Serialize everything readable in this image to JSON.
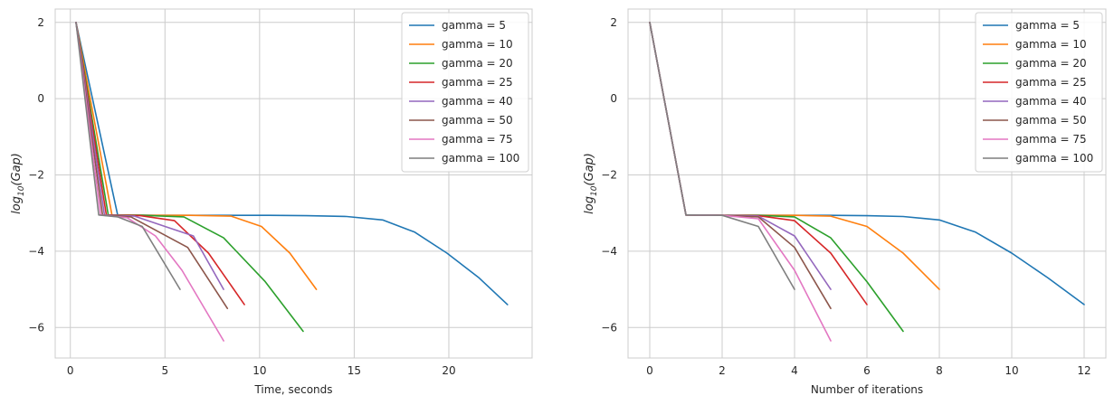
{
  "chart_data": [
    {
      "type": "line",
      "title": "",
      "xlabel": "Time, seconds",
      "ylabel_base": "log",
      "ylabel_sub": "10",
      "ylabel_arg": "(Gap)",
      "xlim": [
        -0.8,
        24.4
      ],
      "ylim": [
        -6.8,
        2.35
      ],
      "xticks": [
        0,
        5,
        10,
        15,
        20
      ],
      "yticks": [
        2,
        0,
        -2,
        -4,
        -6
      ],
      "grid": true,
      "legend_position": "top-right",
      "series": [
        {
          "name": "gamma = 5",
          "color": "#1f77b4",
          "x": [
            0.3,
            2.5,
            4.5,
            6.5,
            8.5,
            10.5,
            12.5,
            14.6,
            16.5,
            18.2,
            19.9,
            21.6,
            23.1
          ],
          "y": [
            2.0,
            -3.05,
            -3.06,
            -3.06,
            -3.06,
            -3.06,
            -3.07,
            -3.09,
            -3.18,
            -3.5,
            -4.05,
            -4.7,
            -5.4
          ]
        },
        {
          "name": "gamma = 10",
          "color": "#ff7f0e",
          "x": [
            0.3,
            2.2,
            4.2,
            6.3,
            8.5,
            10.1,
            11.6,
            13.0
          ],
          "y": [
            2.0,
            -3.05,
            -3.06,
            -3.06,
            -3.08,
            -3.35,
            -4.05,
            -5.0
          ]
        },
        {
          "name": "gamma = 20",
          "color": "#2ca02c",
          "x": [
            0.3,
            2.0,
            3.8,
            6.0,
            8.1,
            10.3,
            12.3
          ],
          "y": [
            2.0,
            -3.05,
            -3.06,
            -3.1,
            -3.65,
            -4.8,
            -6.1
          ]
        },
        {
          "name": "gamma = 25",
          "color": "#d62728",
          "x": [
            0.3,
            1.9,
            3.7,
            5.5,
            7.3,
            9.2
          ],
          "y": [
            2.0,
            -3.05,
            -3.07,
            -3.2,
            -4.05,
            -5.4
          ]
        },
        {
          "name": "gamma = 40",
          "color": "#9467bd",
          "x": [
            0.3,
            1.8,
            3.4,
            5.0,
            6.5,
            8.1
          ],
          "y": [
            2.0,
            -3.05,
            -3.08,
            -3.35,
            -3.6,
            -5.0
          ]
        },
        {
          "name": "gamma = 50",
          "color": "#8c564b",
          "x": [
            0.3,
            1.7,
            3.2,
            4.7,
            6.2,
            8.3
          ],
          "y": [
            2.0,
            -3.05,
            -3.1,
            -3.5,
            -3.9,
            -5.5
          ]
        },
        {
          "name": "gamma = 75",
          "color": "#e377c2",
          "x": [
            0.3,
            1.6,
            3.0,
            4.5,
            5.9,
            8.1
          ],
          "y": [
            2.0,
            -3.05,
            -3.12,
            -3.6,
            -4.5,
            -6.35
          ]
        },
        {
          "name": "gamma = 100",
          "color": "#7f7f7f",
          "x": [
            0.3,
            1.5,
            2.5,
            3.8,
            5.8
          ],
          "y": [
            2.0,
            -3.05,
            -3.1,
            -3.35,
            -5.0
          ]
        }
      ]
    },
    {
      "type": "line",
      "title": "",
      "xlabel": "Number of iterations",
      "ylabel_base": "log",
      "ylabel_sub": "10",
      "ylabel_arg": "(Gap)",
      "xlim": [
        -0.6,
        12.6
      ],
      "ylim": [
        -6.8,
        2.35
      ],
      "xticks": [
        0,
        2,
        4,
        6,
        8,
        10,
        12
      ],
      "yticks": [
        2,
        0,
        -2,
        -4,
        -6
      ],
      "grid": true,
      "legend_position": "top-right",
      "series": [
        {
          "name": "gamma = 5",
          "color": "#1f77b4",
          "x": [
            0,
            1,
            2,
            3,
            4,
            5,
            6,
            7,
            8,
            9,
            10,
            11,
            12
          ],
          "y": [
            2.0,
            -3.05,
            -3.06,
            -3.06,
            -3.06,
            -3.06,
            -3.07,
            -3.09,
            -3.18,
            -3.5,
            -4.05,
            -4.7,
            -5.4
          ]
        },
        {
          "name": "gamma = 10",
          "color": "#ff7f0e",
          "x": [
            0,
            1,
            2,
            3,
            4,
            5,
            6,
            7,
            8
          ],
          "y": [
            2.0,
            -3.05,
            -3.06,
            -3.06,
            -3.06,
            -3.08,
            -3.35,
            -4.05,
            -5.0
          ]
        },
        {
          "name": "gamma = 20",
          "color": "#2ca02c",
          "x": [
            0,
            1,
            2,
            3,
            4,
            5,
            6,
            7
          ],
          "y": [
            2.0,
            -3.05,
            -3.06,
            -3.06,
            -3.1,
            -3.65,
            -4.8,
            -6.1
          ]
        },
        {
          "name": "gamma = 25",
          "color": "#d62728",
          "x": [
            0,
            1,
            2,
            3,
            4,
            5,
            6
          ],
          "y": [
            2.0,
            -3.05,
            -3.06,
            -3.07,
            -3.2,
            -4.05,
            -5.4
          ]
        },
        {
          "name": "gamma = 40",
          "color": "#9467bd",
          "x": [
            0,
            1,
            2,
            3,
            4,
            5
          ],
          "y": [
            2.0,
            -3.05,
            -3.06,
            -3.08,
            -3.6,
            -5.0
          ]
        },
        {
          "name": "gamma = 50",
          "color": "#8c564b",
          "x": [
            0,
            1,
            2,
            3,
            4,
            5
          ],
          "y": [
            2.0,
            -3.05,
            -3.06,
            -3.1,
            -3.9,
            -5.5
          ]
        },
        {
          "name": "gamma = 75",
          "color": "#e377c2",
          "x": [
            0,
            1,
            2,
            3,
            4,
            5
          ],
          "y": [
            2.0,
            -3.05,
            -3.06,
            -3.15,
            -4.5,
            -6.35
          ]
        },
        {
          "name": "gamma = 100",
          "color": "#7f7f7f",
          "x": [
            0,
            1,
            2,
            3,
            4
          ],
          "y": [
            2.0,
            -3.05,
            -3.06,
            -3.35,
            -5.0
          ]
        }
      ]
    }
  ]
}
